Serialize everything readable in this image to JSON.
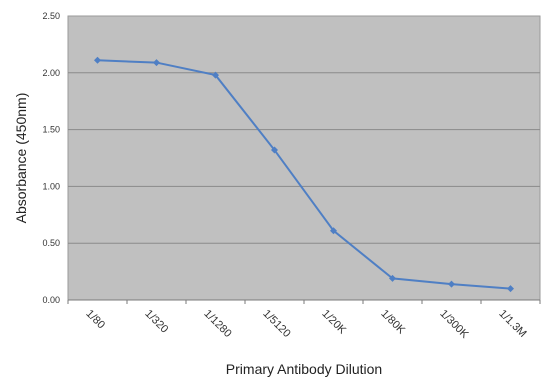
{
  "chart_data": {
    "type": "line",
    "title": "",
    "xlabel": "Primary Antibody Dilution",
    "ylabel": "Absorbance (450nm)",
    "categories": [
      "1/80",
      "1/320",
      "1/1280",
      "1/5120",
      "1/20K",
      "1/80K",
      "1/300K",
      "1/1.3M"
    ],
    "series": [
      {
        "values": [
          2.11,
          2.09,
          1.98,
          1.32,
          0.61,
          0.19,
          0.14,
          0.1
        ]
      }
    ],
    "ylim": [
      0,
      2.5
    ],
    "yticks": [
      "0.00",
      "0.50",
      "1.00",
      "1.50",
      "2.00",
      "2.50"
    ],
    "grid": "horizontal",
    "plot_background": "#c0c0c0",
    "line_color": "#4f7fc4",
    "gridline_color": "#8a8a8a"
  }
}
